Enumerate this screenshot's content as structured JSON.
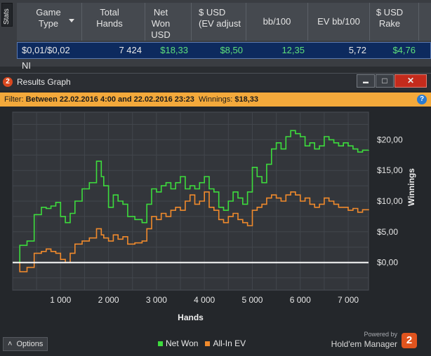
{
  "stats": {
    "tab_label": "Stats",
    "columns": [
      "Game Type",
      "Total Hands",
      "Net Won USD",
      "$ USD (EV adjust",
      "bb/100",
      "EV bb/100",
      "$ USD Rake"
    ],
    "row": {
      "game_type": "$0,01/$0,02 NI",
      "total_hands": "7 424",
      "net_won": "$18,33",
      "ev_adjusted": "$8,50",
      "bb100": "12,35",
      "ev_bb100": "5,72",
      "rake": "$4,76"
    }
  },
  "window": {
    "app_icon": "2",
    "title": "Results Graph",
    "min_glyph": "▬",
    "max_glyph": "□",
    "close_glyph": "✕"
  },
  "filter": {
    "label": "Filter: ",
    "value": "Between 22.02.2016 4:00 and 22.02.2016 23:23",
    "winnings_label": "  Winnings: ",
    "winnings_value": "$18,33",
    "help_glyph": "?"
  },
  "footer": {
    "options_label": "Options",
    "options_glyph": "˄",
    "powered_by": "Powered by",
    "brand_name": "Hold'em Manager",
    "brand_logo": "2"
  },
  "colors": {
    "net_won": "#3ddc3d",
    "all_in_ev": "#f08a2c",
    "zero_line": "#ffffff",
    "accent_filter": "#f3a93b"
  },
  "chart_data": {
    "type": "line",
    "xlabel": "Hands",
    "ylabel": "Winnings",
    "xlim": [
      0,
      7424
    ],
    "ylim": [
      -4.5,
      24.5
    ],
    "x_ticks": [
      1000,
      2000,
      3000,
      4000,
      5000,
      6000,
      7000
    ],
    "x_tick_labels": [
      "1 000",
      "2 000",
      "3 000",
      "4 000",
      "5 000",
      "6 000",
      "7 000"
    ],
    "y_ticks": [
      0,
      5,
      10,
      15,
      20
    ],
    "y_tick_labels": [
      "$0,00",
      "$5,00",
      "$10,00",
      "$15,00",
      "$20,00"
    ],
    "grid": true,
    "legend_position": "bottom",
    "series": [
      {
        "name": "Net Won",
        "x": [
          0,
          150,
          300,
          450,
          600,
          700,
          800,
          900,
          1000,
          1100,
          1200,
          1300,
          1450,
          1600,
          1750,
          1850,
          1900,
          2000,
          2100,
          2200,
          2300,
          2400,
          2550,
          2700,
          2800,
          2900,
          3000,
          3100,
          3200,
          3300,
          3400,
          3500,
          3600,
          3700,
          3800,
          3900,
          4000,
          4100,
          4200,
          4300,
          4400,
          4500,
          4600,
          4700,
          4800,
          4900,
          5000,
          5100,
          5200,
          5300,
          5400,
          5500,
          5600,
          5700,
          5800,
          5900,
          6000,
          6100,
          6200,
          6300,
          6400,
          6500,
          6600,
          6700,
          6800,
          6900,
          7000,
          7100,
          7200,
          7300,
          7424
        ],
        "values": [
          0.0,
          2.8,
          3.5,
          7.8,
          9.0,
          8.8,
          9.2,
          9.8,
          7.5,
          6.5,
          8.0,
          10.0,
          12.0,
          13.0,
          16.5,
          14.0,
          12.5,
          9.0,
          11.0,
          10.0,
          9.5,
          7.5,
          7.0,
          6.5,
          9.5,
          12.0,
          11.5,
          12.5,
          13.0,
          12.0,
          13.0,
          14.0,
          12.0,
          12.5,
          12.0,
          13.0,
          14.0,
          12.0,
          11.5,
          9.0,
          8.5,
          10.0,
          11.5,
          10.5,
          9.5,
          11.5,
          15.5,
          14.0,
          13.0,
          16.0,
          18.5,
          19.5,
          18.5,
          20.5,
          21.5,
          21.0,
          20.5,
          19.0,
          19.5,
          18.5,
          19.0,
          20.5,
          20.0,
          19.5,
          19.0,
          19.5,
          19.0,
          18.5,
          18.0,
          18.3,
          18.33
        ]
      },
      {
        "name": "All-In EV",
        "x": [
          0,
          150,
          300,
          450,
          600,
          700,
          800,
          900,
          1000,
          1100,
          1200,
          1300,
          1450,
          1600,
          1750,
          1850,
          1900,
          2000,
          2100,
          2200,
          2300,
          2400,
          2550,
          2700,
          2800,
          2900,
          3000,
          3100,
          3200,
          3300,
          3400,
          3500,
          3600,
          3700,
          3800,
          3900,
          4000,
          4100,
          4200,
          4300,
          4400,
          4500,
          4600,
          4700,
          4800,
          4900,
          5000,
          5100,
          5200,
          5300,
          5400,
          5500,
          5600,
          5700,
          5800,
          5900,
          6000,
          6100,
          6200,
          6300,
          6400,
          6500,
          6600,
          6700,
          6800,
          6900,
          7000,
          7100,
          7200,
          7300,
          7424
        ],
        "values": [
          0.0,
          -1.5,
          -0.8,
          1.5,
          1.8,
          2.2,
          1.8,
          1.5,
          0.5,
          0.0,
          1.5,
          3.0,
          3.5,
          4.0,
          5.5,
          4.5,
          4.0,
          3.5,
          4.5,
          3.8,
          4.2,
          3.0,
          3.2,
          3.5,
          5.5,
          7.5,
          7.0,
          8.0,
          7.5,
          8.5,
          9.0,
          8.5,
          10.0,
          11.0,
          9.5,
          10.0,
          11.5,
          9.0,
          8.5,
          7.0,
          6.5,
          7.5,
          8.0,
          7.0,
          6.5,
          6.0,
          8.5,
          9.0,
          9.5,
          10.5,
          11.0,
          10.5,
          10.0,
          11.0,
          11.5,
          11.0,
          10.0,
          10.5,
          9.5,
          9.0,
          9.5,
          10.5,
          10.0,
          9.5,
          9.0,
          9.0,
          8.5,
          8.8,
          8.2,
          8.6,
          8.5
        ]
      }
    ]
  }
}
